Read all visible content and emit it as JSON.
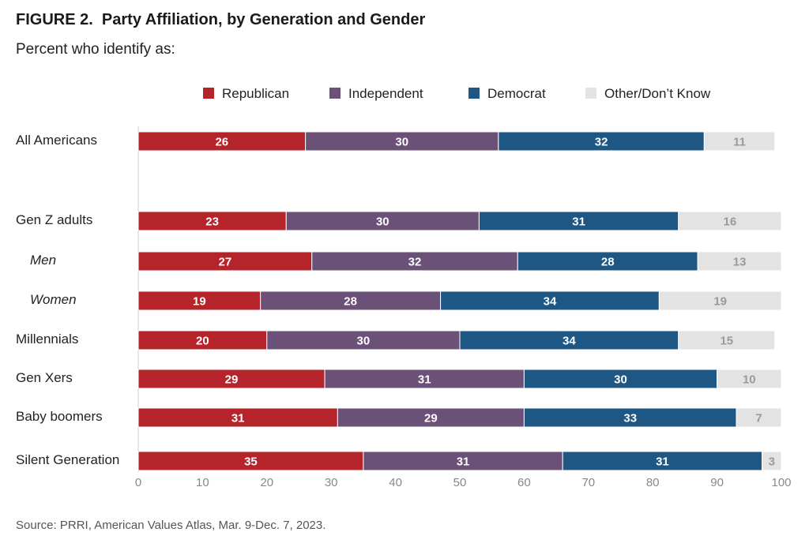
{
  "title": "FIGURE 2.  Party Affiliation, by Generation and Gender",
  "subtitle": "Percent who identify as:",
  "source": "Source: PRRI, American Values Atlas, Mar. 9-Dec. 7, 2023.",
  "colors": {
    "Republican": "#b5232b",
    "Independent": "#6b5077",
    "Democrat": "#1e5784",
    "Other/Don’t Know": "#e3e3e3"
  },
  "chart_data": {
    "type": "bar",
    "orientation": "horizontal",
    "stacked": true,
    "categories": [
      "All Americans",
      "Gen Z adults",
      "Men",
      "Women",
      "Millennials",
      "Gen Xers",
      "Baby boomers",
      "Silent Generation"
    ],
    "italic_categories": [
      "Men",
      "Women"
    ],
    "series": [
      {
        "name": "Republican",
        "values": [
          26,
          23,
          27,
          19,
          20,
          29,
          31,
          35
        ]
      },
      {
        "name": "Independent",
        "values": [
          30,
          30,
          32,
          28,
          30,
          31,
          29,
          31
        ]
      },
      {
        "name": "Democrat",
        "values": [
          32,
          31,
          28,
          34,
          34,
          30,
          33,
          31
        ]
      },
      {
        "name": "Other/Don’t Know",
        "values": [
          11,
          16,
          13,
          19,
          15,
          10,
          7,
          3
        ]
      }
    ],
    "xlim": [
      0,
      100
    ],
    "xticks": [
      0,
      10,
      20,
      30,
      40,
      50,
      60,
      70,
      80,
      90,
      100
    ],
    "legend": "top",
    "grid": false
  }
}
